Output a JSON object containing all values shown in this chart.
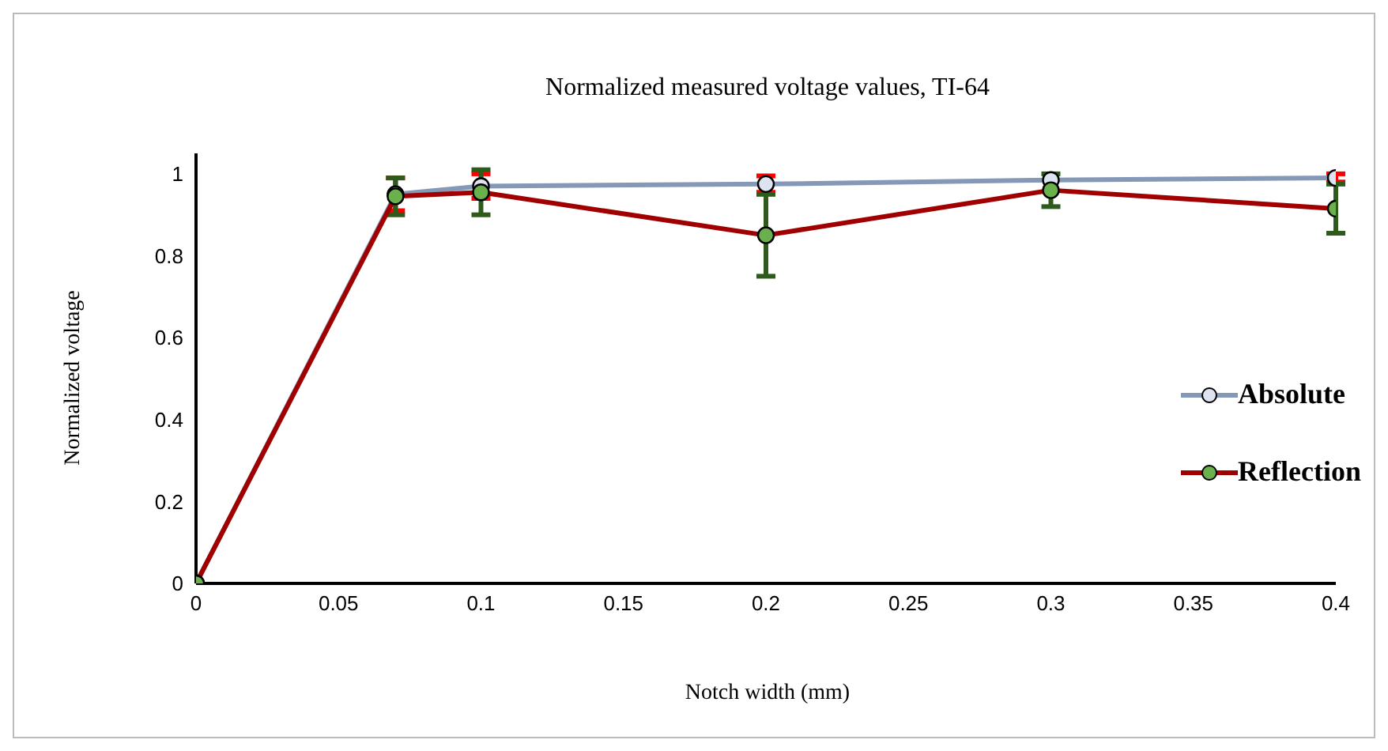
{
  "chart_data": {
    "type": "line",
    "title": "Normalized measured voltage values, TI-64",
    "xlabel": "Notch width (mm)",
    "ylabel": "Normalized voltage",
    "x": [
      0,
      0.07,
      0.1,
      0.2,
      0.3,
      0.4
    ],
    "series": [
      {
        "name": "Absolute",
        "color": "#8498b8",
        "values": [
          0,
          0.95,
          0.97,
          0.975,
          0.985,
          0.99
        ],
        "errors": [
          null,
          0.04,
          0.03,
          0.02,
          null,
          0.01
        ]
      },
      {
        "name": "Reflection",
        "color": "#a00000",
        "values": [
          0,
          0.945,
          0.955,
          0.85,
          0.96,
          0.915
        ],
        "errors": [
          null,
          0.045,
          0.055,
          0.1,
          0.04,
          0.06
        ]
      }
    ],
    "xlim": [
      0,
      0.4
    ],
    "xticks": [
      0,
      0.05,
      0.1,
      0.15,
      0.2,
      0.25,
      0.3,
      0.35,
      0.4
    ],
    "ylim": [
      0,
      1.05
    ],
    "yticks": [
      0,
      0.2,
      0.4,
      0.6,
      0.8,
      1
    ],
    "grid": false,
    "legend": "right",
    "marker": "circle",
    "line_style": "solid"
  }
}
